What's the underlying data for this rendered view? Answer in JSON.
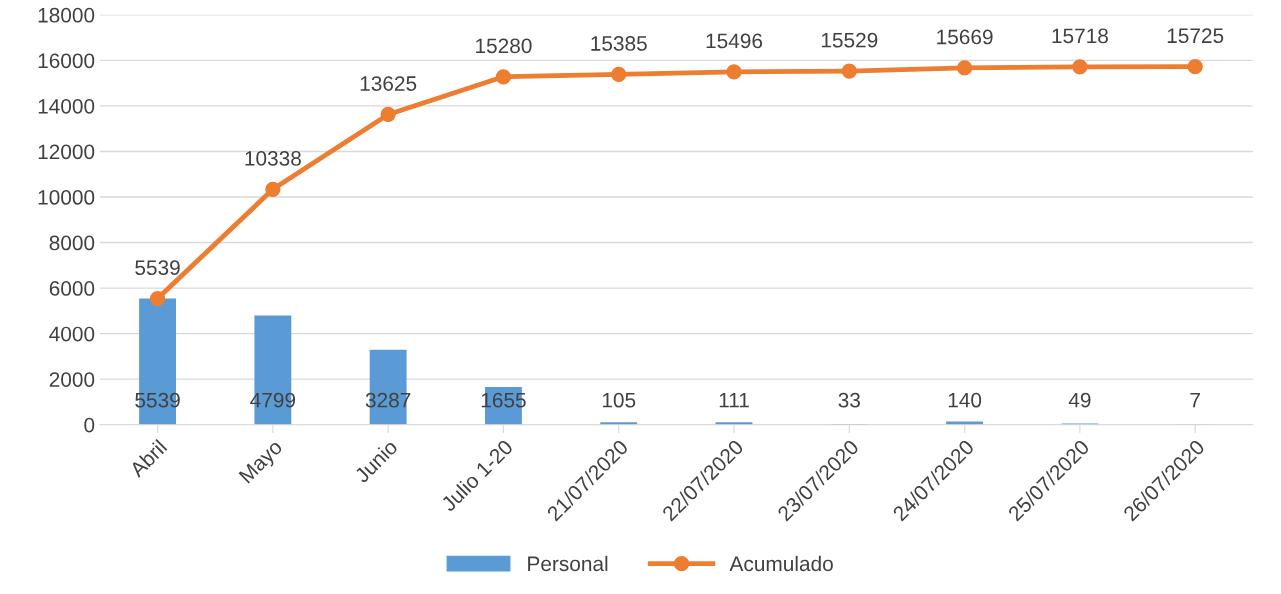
{
  "chart_data": {
    "type": "bar",
    "categories": [
      "Abril",
      "Mayo",
      "Junio",
      "Julio 1-20",
      "21/07/2020",
      "22/07/2020",
      "23/07/2020",
      "24/07/2020",
      "25/07/2020",
      "26/07/2020"
    ],
    "series": [
      {
        "name": "Personal",
        "color": "#5b9bd5",
        "values": [
          5539,
          4799,
          3287,
          1655,
          105,
          111,
          33,
          140,
          49,
          7
        ]
      },
      {
        "name": "Acumulado",
        "type": "line",
        "color": "#ed7d31",
        "marker": "circle",
        "values": [
          5539,
          10338,
          13625,
          15280,
          15385,
          15496,
          15529,
          15669,
          15718,
          15725
        ]
      }
    ],
    "ylim": [
      0,
      18000
    ],
    "yticks": [
      0,
      2000,
      4000,
      6000,
      8000,
      10000,
      12000,
      14000,
      16000,
      18000
    ],
    "grid": "y",
    "legend": "bottom",
    "data_labels": true
  }
}
